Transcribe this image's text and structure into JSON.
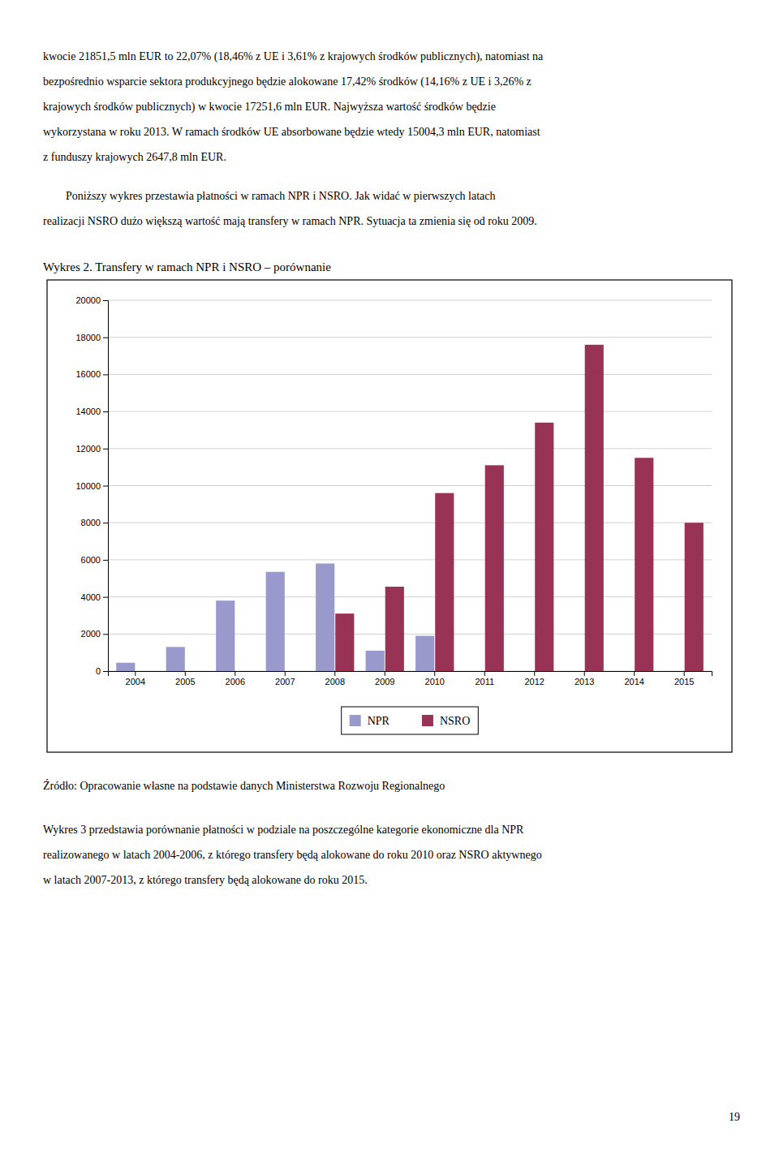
{
  "top_text_lines": [
    "kwocie 21851,5 mln EUR to 22,07% (18,46% z UE i 3,61% z krajowych środków publicznych), natomiast na",
    "bezpośrednio wsparcie sektora produkcyjnego będzie alokowane 17,42% środków (14,16% z UE i 3,26% z",
    "krajowych środków publicznych) w kwocie 17251,6 mln EUR. Najwyższa wartość środków będzie",
    "wykorzystana w roku 2013. W ramach środków UE absorbowane będzie wtedy 15004,3 mln EUR, natomiast",
    "z funduszy krajowych 2647,8 mln EUR."
  ],
  "mid_text_lines": [
    "        Poniższy wykres przestawia płatności w ramach NPR i NSRO. Jak widać w pierwszych latach",
    "realizacji NSRO dużo większą wartość mają transfery w ramach NPR. Sytuacja ta zmienia się od roku 2009."
  ],
  "chart_data": {
    "type": "bar",
    "title": "Wykres 2. Transfery w ramach NPR i NSRO – porównanie",
    "categories": [
      "2004",
      "2005",
      "2006",
      "2007",
      "2008",
      "2009",
      "2010",
      "2011",
      "2012",
      "2013",
      "2014",
      "2015"
    ],
    "series": [
      {
        "name": "NPR",
        "color": "#9999cc",
        "values": [
          450,
          1300,
          3800,
          5350,
          5800,
          1100,
          1900,
          0,
          0,
          0,
          0,
          0
        ]
      },
      {
        "name": "NSRO",
        "color": "#993355",
        "values": [
          0,
          0,
          0,
          0,
          3100,
          4550,
          9600,
          11100,
          13400,
          17600,
          11500,
          8000
        ]
      }
    ],
    "ylim": [
      0,
      20000
    ],
    "yticks": [
      0,
      2000,
      4000,
      6000,
      8000,
      10000,
      12000,
      14000,
      16000,
      18000,
      20000
    ],
    "grid": true,
    "legend": "bottom"
  },
  "source_text": "Źródło: Opracowanie własne na podstawie danych Ministerstwa Rozwoju Regionalnego",
  "body_text_lines": [
    "Wykres 3 przedstawia porównanie płatności w podziale na poszczególne kategorie ekonomiczne dla NPR",
    "realizowanego w latach 2004-2006, z którego transfery będą alokowane do roku 2010 oraz NSRO aktywnego",
    "w latach 2007-2013, z którego transfery będą alokowane do roku 2015."
  ],
  "page_number": "19"
}
